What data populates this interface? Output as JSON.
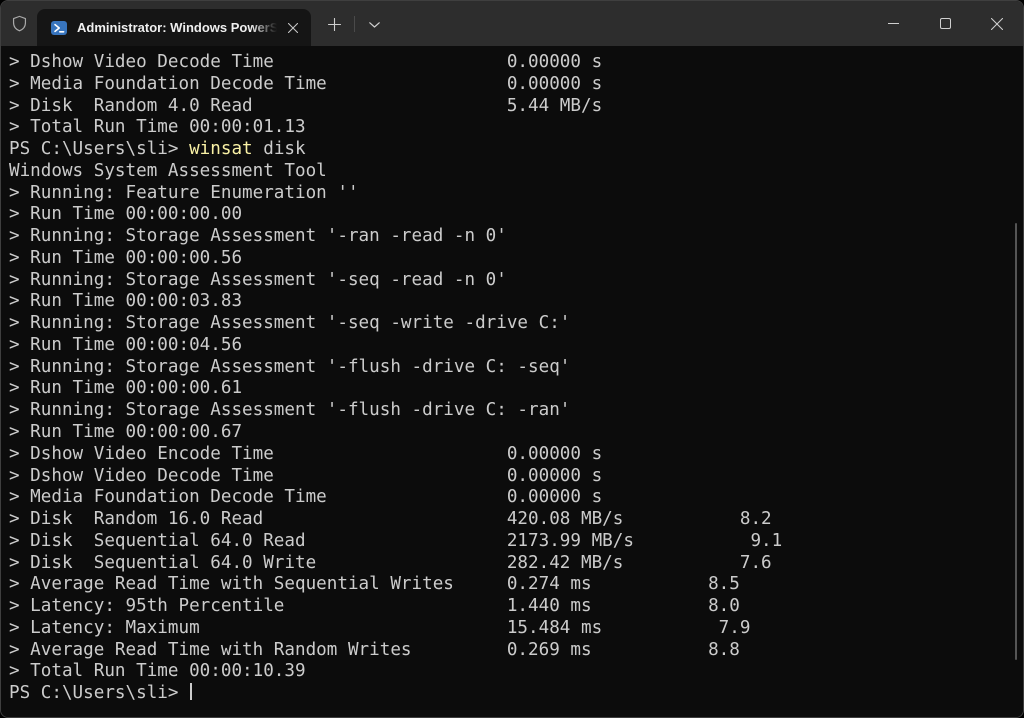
{
  "window": {
    "titlebar": {
      "tab_title": "Administrator: Windows PowerShell",
      "icons": {
        "admin_shield": "shield-outline",
        "tab_app": "powershell",
        "tab_close": "close-x",
        "new_tab": "plus",
        "tab_dropdown": "chevron-down",
        "minimize": "minimize-line",
        "maximize": "maximize-square",
        "close": "close-x"
      }
    },
    "colors": {
      "titlebar_bg": "#2d2d2d",
      "tab_bg": "#151515",
      "terminal_bg": "#0c0c0c",
      "foreground": "#cccccc",
      "command_highlight": "#f9f1a5",
      "powershell_icon_blue": "#3875be"
    }
  },
  "terminal": {
    "prompt": "PS C:\\Users\\sli> ",
    "value_column": 47,
    "score_gap": 11,
    "lines": [
      {
        "kind": "metric",
        "label": "> Dshow Video Decode Time",
        "value": "0.00000 s"
      },
      {
        "kind": "metric",
        "label": "> Media Foundation Decode Time",
        "value": "0.00000 s"
      },
      {
        "kind": "metric",
        "label": "> Disk  Random 4.0 Read",
        "value": "5.44 MB/s"
      },
      {
        "kind": "plain",
        "text": "> Total Run Time 00:00:01.13"
      },
      {
        "kind": "prompt",
        "command": "winsat",
        "args": " disk"
      },
      {
        "kind": "plain",
        "text": "Windows System Assessment Tool"
      },
      {
        "kind": "plain",
        "text": "> Running: Feature Enumeration ''"
      },
      {
        "kind": "plain",
        "text": "> Run Time 00:00:00.00"
      },
      {
        "kind": "plain",
        "text": "> Running: Storage Assessment '-ran -read -n 0'"
      },
      {
        "kind": "plain",
        "text": "> Run Time 00:00:00.56"
      },
      {
        "kind": "plain",
        "text": "> Running: Storage Assessment '-seq -read -n 0'"
      },
      {
        "kind": "plain",
        "text": "> Run Time 00:00:03.83"
      },
      {
        "kind": "plain",
        "text": "> Running: Storage Assessment '-seq -write -drive C:'"
      },
      {
        "kind": "plain",
        "text": "> Run Time 00:00:04.56"
      },
      {
        "kind": "plain",
        "text": "> Running: Storage Assessment '-flush -drive C: -seq'"
      },
      {
        "kind": "plain",
        "text": "> Run Time 00:00:00.61"
      },
      {
        "kind": "plain",
        "text": "> Running: Storage Assessment '-flush -drive C: -ran'"
      },
      {
        "kind": "plain",
        "text": "> Run Time 00:00:00.67"
      },
      {
        "kind": "metric",
        "label": "> Dshow Video Encode Time",
        "value": "0.00000 s"
      },
      {
        "kind": "metric",
        "label": "> Dshow Video Decode Time",
        "value": "0.00000 s"
      },
      {
        "kind": "metric",
        "label": "> Media Foundation Decode Time",
        "value": "0.00000 s"
      },
      {
        "kind": "metric",
        "label": "> Disk  Random 16.0 Read",
        "value": "420.08 MB/s",
        "score": "8.2"
      },
      {
        "kind": "metric",
        "label": "> Disk  Sequential 64.0 Read",
        "value": "2173.99 MB/s",
        "score": "9.1"
      },
      {
        "kind": "metric",
        "label": "> Disk  Sequential 64.0 Write",
        "value": "282.42 MB/s",
        "score": "7.6"
      },
      {
        "kind": "metric",
        "label": "> Average Read Time with Sequential Writes",
        "value": "0.274 ms",
        "score": "8.5"
      },
      {
        "kind": "metric",
        "label": "> Latency: 95th Percentile",
        "value": "1.440 ms",
        "score": "8.0"
      },
      {
        "kind": "metric",
        "label": "> Latency: Maximum",
        "value": "15.484 ms",
        "score": "7.9"
      },
      {
        "kind": "metric",
        "label": "> Average Read Time with Random Writes",
        "value": "0.269 ms",
        "score": "8.8"
      },
      {
        "kind": "plain",
        "text": "> Total Run Time 00:00:10.39"
      },
      {
        "kind": "prompt",
        "cursor": true
      }
    ]
  }
}
